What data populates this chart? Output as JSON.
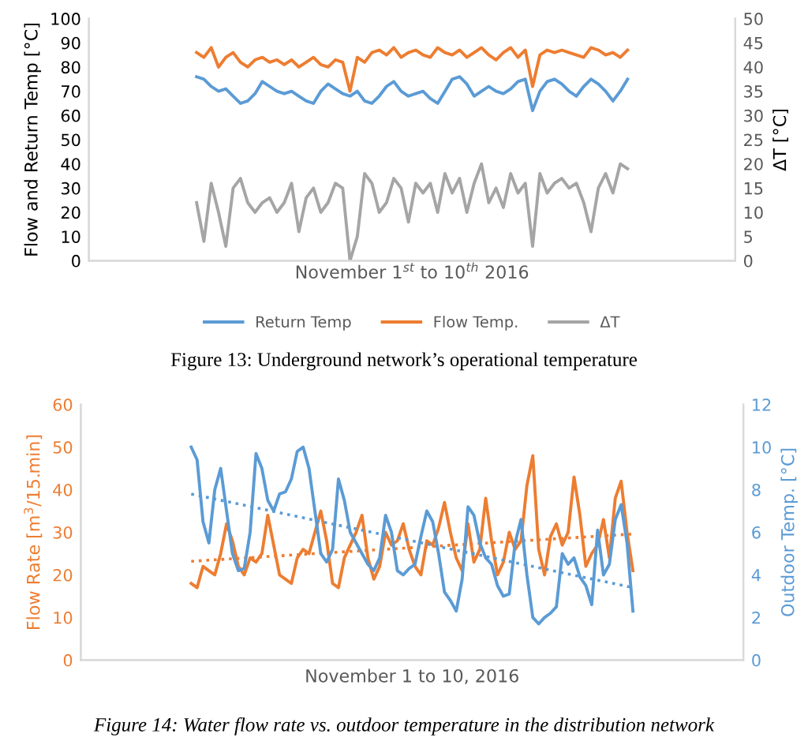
{
  "chart_data": [
    {
      "type": "line",
      "xlabel": "November 1$^{st}$ to 10$^{th}$ 2016",
      "ylabel": "Flow and Return Temp [°C]",
      "y2label": "ΔT [°C]",
      "categories": [
        null,
        null,
        null,
        null,
        null,
        null,
        null,
        null,
        null,
        null,
        null,
        null,
        null,
        null,
        null,
        null,
        null,
        null,
        null,
        null,
        null,
        null,
        null,
        null,
        null,
        null,
        null,
        null,
        null,
        null,
        null,
        null,
        null,
        null,
        null,
        null,
        null,
        null,
        null,
        null,
        null,
        null,
        null,
        null,
        null,
        null,
        null,
        null,
        null,
        null,
        null,
        null,
        null,
        null,
        null,
        null,
        null,
        null,
        null,
        null
      ],
      "series": [
        {
          "name": "Return Temp",
          "color": "#5b9bd5",
          "values": [
            76,
            75,
            72,
            70,
            71,
            68,
            65,
            66,
            69,
            74,
            72,
            70,
            69,
            70,
            68,
            66,
            65,
            70,
            73,
            71,
            69,
            68,
            70,
            66,
            65,
            68,
            72,
            74,
            70,
            68,
            69,
            70,
            67,
            65,
            70,
            75,
            76,
            73,
            68,
            70,
            72,
            70,
            69,
            71,
            74,
            75,
            62,
            70,
            74,
            75,
            73,
            70,
            68,
            72,
            75,
            73,
            70,
            66,
            70,
            75
          ]
        },
        {
          "name": "Flow Temp.",
          "color": "#ed7d31",
          "values": [
            86,
            84,
            88,
            80,
            84,
            86,
            82,
            80,
            83,
            84,
            82,
            83,
            81,
            83,
            80,
            82,
            84,
            81,
            80,
            83,
            82,
            70,
            84,
            82,
            86,
            87,
            85,
            88,
            84,
            86,
            87,
            85,
            84,
            88,
            86,
            85,
            87,
            84,
            86,
            88,
            85,
            83,
            86,
            88,
            84,
            87,
            72,
            85,
            87,
            86,
            87,
            86,
            85,
            84,
            88,
            87,
            85,
            86,
            84,
            87
          ]
        },
        {
          "name": "ΔT",
          "color": "#a5a5a5",
          "axis": "y2",
          "values": [
            12,
            4,
            16,
            10,
            3,
            15,
            17,
            12,
            10,
            12,
            13,
            10,
            12,
            16,
            6,
            13,
            15,
            10,
            12,
            16,
            15,
            0,
            5,
            18,
            16,
            10,
            12,
            17,
            15,
            8,
            16,
            14,
            16,
            10,
            18,
            14,
            17,
            10,
            16,
            20,
            12,
            15,
            11,
            18,
            14,
            16,
            3,
            18,
            14,
            16,
            17,
            15,
            16,
            12,
            6,
            15,
            18,
            14,
            20,
            19
          ]
        }
      ],
      "ylim": [
        0,
        100
      ],
      "yticks": [
        0,
        10,
        20,
        30,
        40,
        50,
        60,
        70,
        80,
        90,
        100
      ],
      "y2lim": [
        0,
        50
      ],
      "y2ticks": [
        0,
        5,
        10,
        15,
        20,
        25,
        30,
        35,
        40,
        45,
        50
      ],
      "grid": false,
      "legend": "bottom",
      "tick_labels": "y",
      "annotations": [
        "Figure 13: Underground network’s operational temperature"
      ]
    },
    {
      "type": "line",
      "xlabel": "November 1 to 10, 2016",
      "ylabel": "Flow Rate [m$^{3}$/15.min]",
      "y2label": "Outdoor Temp. [°C]",
      "categories": [
        null,
        null,
        null,
        null,
        null,
        null,
        null,
        null,
        null,
        null,
        null,
        null,
        null,
        null,
        null,
        null,
        null,
        null,
        null,
        null,
        null,
        null,
        null,
        null,
        null,
        null,
        null,
        null,
        null,
        null,
        null,
        null,
        null,
        null,
        null,
        null,
        null,
        null,
        null,
        null,
        null,
        null,
        null,
        null,
        null,
        null,
        null,
        null,
        null,
        null,
        null,
        null,
        null,
        null,
        null,
        null,
        null,
        null,
        null,
        null,
        null,
        null,
        null,
        null,
        null,
        null,
        null,
        null,
        null,
        null,
        null,
        null,
        null,
        null,
        null,
        null
      ],
      "series": [
        {
          "color": "#ed7d31",
          "values": [
            18,
            17,
            22,
            21,
            20,
            25,
            32,
            28,
            22,
            20,
            24,
            23,
            25,
            34,
            27,
            20,
            19,
            18,
            24,
            26,
            25,
            30,
            35,
            28,
            18,
            17,
            24,
            27,
            30,
            34,
            24,
            19,
            22,
            30,
            27,
            28,
            32,
            26,
            22,
            20,
            28,
            27,
            31,
            37,
            30,
            24,
            21,
            32,
            23,
            26,
            38,
            28,
            20,
            23,
            30,
            26,
            28,
            41,
            48,
            26,
            20,
            29,
            32,
            27,
            30,
            43,
            34,
            22,
            25,
            27,
            33,
            24,
            38,
            42,
            30,
            21
          ]
        },
        {
          "color": "#5b9bd5",
          "axis": "y2",
          "values": [
            10,
            9.4,
            6.5,
            5.5,
            8,
            9,
            7,
            5,
            4.2,
            4.3,
            6,
            9.7,
            9,
            7.5,
            7,
            7.8,
            7.9,
            8.5,
            9.8,
            10,
            9,
            7,
            5,
            4.6,
            5.2,
            8.5,
            7.5,
            6,
            5.5,
            5,
            4.5,
            4.2,
            4.8,
            6.8,
            6,
            4.2,
            4,
            4.3,
            4.5,
            5.8,
            7,
            6.5,
            5,
            3.2,
            2.8,
            2.3,
            3.8,
            7.2,
            6.8,
            5.5,
            4.8,
            4.5,
            3.5,
            3,
            3.1,
            5.5,
            6.6,
            4,
            2,
            1.7,
            2,
            2.2,
            2.5,
            5,
            4.5,
            4.8,
            3.9,
            3.5,
            2.6,
            6.1,
            4,
            4.5,
            6.6,
            7.3,
            5.5,
            2.3
          ]
        },
        {
          "color": "#ed7d31",
          "line_style": "dotted",
          "values": [
            23.2,
            null,
            null,
            null,
            null,
            null,
            null,
            null,
            null,
            null,
            null,
            null,
            null,
            null,
            null,
            null,
            null,
            null,
            null,
            null,
            null,
            null,
            null,
            null,
            null,
            null,
            null,
            null,
            null,
            null,
            null,
            null,
            null,
            null,
            null,
            null,
            null,
            null,
            null,
            null,
            null,
            null,
            null,
            null,
            null,
            null,
            null,
            null,
            null,
            null,
            null,
            null,
            null,
            null,
            null,
            null,
            null,
            null,
            null,
            null,
            null,
            null,
            null,
            null,
            null,
            null,
            null,
            null,
            null,
            null,
            null,
            null,
            null,
            null,
            null,
            29.6
          ]
        },
        {
          "color": "#5b9bd5",
          "line_style": "dotted",
          "axis": "y2",
          "values": [
            7.8,
            null,
            null,
            null,
            null,
            null,
            null,
            null,
            null,
            null,
            null,
            null,
            null,
            null,
            null,
            null,
            null,
            null,
            null,
            null,
            null,
            null,
            null,
            null,
            null,
            null,
            null,
            null,
            null,
            null,
            null,
            null,
            null,
            null,
            null,
            null,
            null,
            null,
            null,
            null,
            null,
            null,
            null,
            null,
            null,
            null,
            null,
            null,
            null,
            null,
            null,
            null,
            null,
            null,
            null,
            null,
            null,
            null,
            null,
            null,
            null,
            null,
            null,
            null,
            null,
            null,
            null,
            null,
            null,
            null,
            null,
            null,
            null,
            null,
            null,
            3.4
          ]
        }
      ],
      "ylim": [
        0,
        60
      ],
      "yticks": [
        0,
        10,
        20,
        30,
        40,
        50,
        60
      ],
      "y2lim": [
        0,
        12
      ],
      "y2ticks": [
        0,
        2,
        4,
        6,
        8,
        10,
        12
      ],
      "grid": false,
      "tick_labels": "y",
      "annotations": [
        "Figure 14: Water flow rate vs. outdoor temperature in the distribution network"
      ]
    }
  ]
}
